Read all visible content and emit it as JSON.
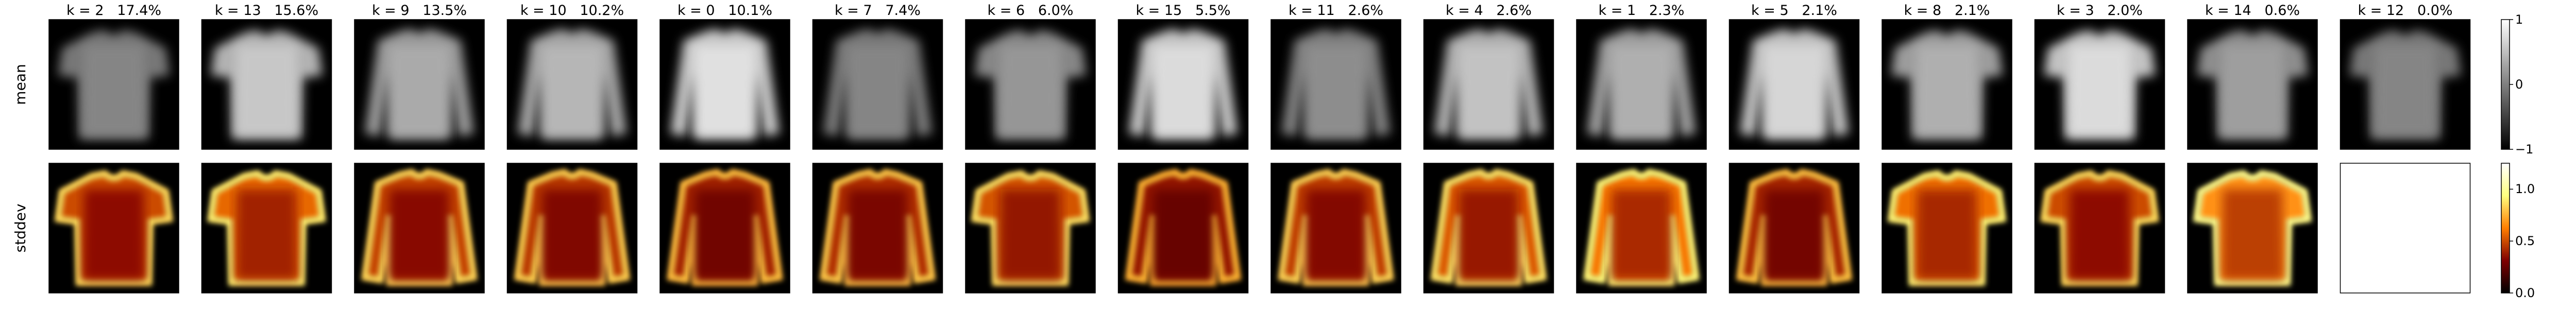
{
  "chart_data": {
    "type": "heatmap",
    "description_rows": [
      "mean",
      "stddev"
    ],
    "row_labels": [
      "mean",
      "stddev"
    ],
    "panels": [
      {
        "k": "k = 2",
        "pct": "17.4%",
        "shape": "tshirt",
        "mean_level": 0.55,
        "std_level": 0.45
      },
      {
        "k": "k = 13",
        "pct": "15.6%",
        "shape": "tshirt",
        "mean_level": 0.82,
        "std_level": 0.55
      },
      {
        "k": "k = 9",
        "pct": "13.5%",
        "shape": "longsleeve",
        "mean_level": 0.7,
        "std_level": 0.42
      },
      {
        "k": "k = 10",
        "pct": "10.2%",
        "shape": "longsleeve",
        "mean_level": 0.75,
        "std_level": 0.38
      },
      {
        "k": "k = 0",
        "pct": "10.1%",
        "shape": "longsleeve",
        "mean_level": 0.92,
        "std_level": 0.3
      },
      {
        "k": "k = 7",
        "pct": "7.4%",
        "shape": "longsleeve",
        "mean_level": 0.55,
        "std_level": 0.35
      },
      {
        "k": "k = 6",
        "pct": "6.0%",
        "shape": "tshirt",
        "mean_level": 0.62,
        "std_level": 0.48
      },
      {
        "k": "k = 15",
        "pct": "5.5%",
        "shape": "longsleeve",
        "mean_level": 0.9,
        "std_level": 0.25
      },
      {
        "k": "k = 11",
        "pct": "2.6%",
        "shape": "longsleeve",
        "mean_level": 0.58,
        "std_level": 0.4
      },
      {
        "k": "k = 4",
        "pct": "2.6%",
        "shape": "longsleeve",
        "mean_level": 0.8,
        "std_level": 0.5
      },
      {
        "k": "k = 1",
        "pct": "2.3%",
        "shape": "longsleeve",
        "mean_level": 0.72,
        "std_level": 0.6
      },
      {
        "k": "k = 5",
        "pct": "2.1%",
        "shape": "longsleeve",
        "mean_level": 0.88,
        "std_level": 0.32
      },
      {
        "k": "k = 8",
        "pct": "2.1%",
        "shape": "tshirt",
        "mean_level": 0.72,
        "std_level": 0.58
      },
      {
        "k": "k = 3",
        "pct": "2.0%",
        "shape": "tshirt",
        "mean_level": 0.9,
        "std_level": 0.45
      },
      {
        "k": "k = 14",
        "pct": "0.6%",
        "shape": "tshirt",
        "mean_level": 0.65,
        "std_level": 0.7
      },
      {
        "k": "k = 12",
        "pct": "0.0%",
        "shape": "tshirt",
        "mean_level": 0.55,
        "std_level": null
      }
    ],
    "colorbars": [
      {
        "row": "mean",
        "colormap": "gray",
        "range": [
          -1,
          1
        ],
        "ticks": [
          {
            "value": 1,
            "label": "1"
          },
          {
            "value": 0,
            "label": "0"
          },
          {
            "value": -1,
            "label": "−1"
          }
        ]
      },
      {
        "row": "stddev",
        "colormap": "afmhot",
        "range": [
          0,
          1.25
        ],
        "ticks": [
          {
            "value": 1.0,
            "label": "1.0"
          },
          {
            "value": 0.5,
            "label": "0.5"
          },
          {
            "value": 0.0,
            "label": "0.0"
          }
        ]
      }
    ],
    "grid": false
  }
}
